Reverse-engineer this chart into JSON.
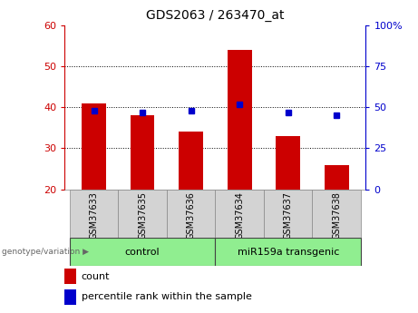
{
  "title": "GDS2063 / 263470_at",
  "samples": [
    "GSM37633",
    "GSM37635",
    "GSM37636",
    "GSM37634",
    "GSM37637",
    "GSM37638"
  ],
  "count_values": [
    41,
    38,
    34,
    54,
    33,
    26
  ],
  "percentile_values": [
    48,
    47,
    48,
    52,
    47,
    45
  ],
  "ymin": 20,
  "ymax": 60,
  "yticks_left": [
    20,
    30,
    40,
    50,
    60
  ],
  "yticks_right": [
    0,
    25,
    50,
    75,
    100
  ],
  "bar_color": "#cc0000",
  "square_color": "#0000cc",
  "control_label": "control",
  "transgenic_label": "miR159a transgenic",
  "group_label": "genotype/variation",
  "legend_count": "count",
  "legend_percentile": "percentile rank within the sample",
  "title_fontsize": 10,
  "tick_fontsize": 8,
  "sample_tick_fontsize": 7,
  "background_color": "#ffffff",
  "group_bg_color": "#90ee90",
  "sample_bg_color": "#d3d3d3"
}
